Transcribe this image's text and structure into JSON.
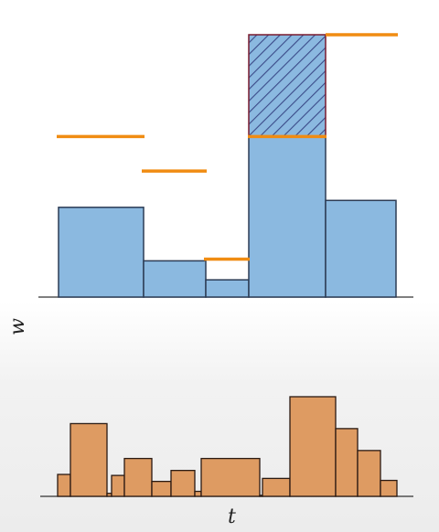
{
  "labels": {
    "w_axis": "w",
    "t_axis": "t"
  },
  "colors": {
    "blue_bar": "#8bb9e0",
    "blue_stroke": "#2c3c55",
    "orange_line": "#f08c12",
    "hatch_stroke": "#7a1a2e",
    "orange_bar": "#de9b62",
    "orange_stroke": "#2a1a12",
    "axis": "#333333"
  },
  "chart_data": [
    {
      "type": "bar",
      "series": [
        {
          "values": [
            0.52,
            0.21,
            0.1,
            0.93,
            0.56
          ]
        }
      ],
      "overlay_levels": [
        0.93,
        0.73,
        0.22,
        1.52
      ],
      "hatched_extension": {
        "bar_index": 3,
        "from": 0.93,
        "to": 1.52
      }
    },
    {
      "type": "bar",
      "values": [
        0.22,
        0.73,
        0.03,
        0.21,
        0.38,
        0.15,
        0.26,
        0.05,
        0.38,
        0.01,
        0.18,
        1.0,
        0.68,
        0.46,
        0.16
      ]
    }
  ]
}
